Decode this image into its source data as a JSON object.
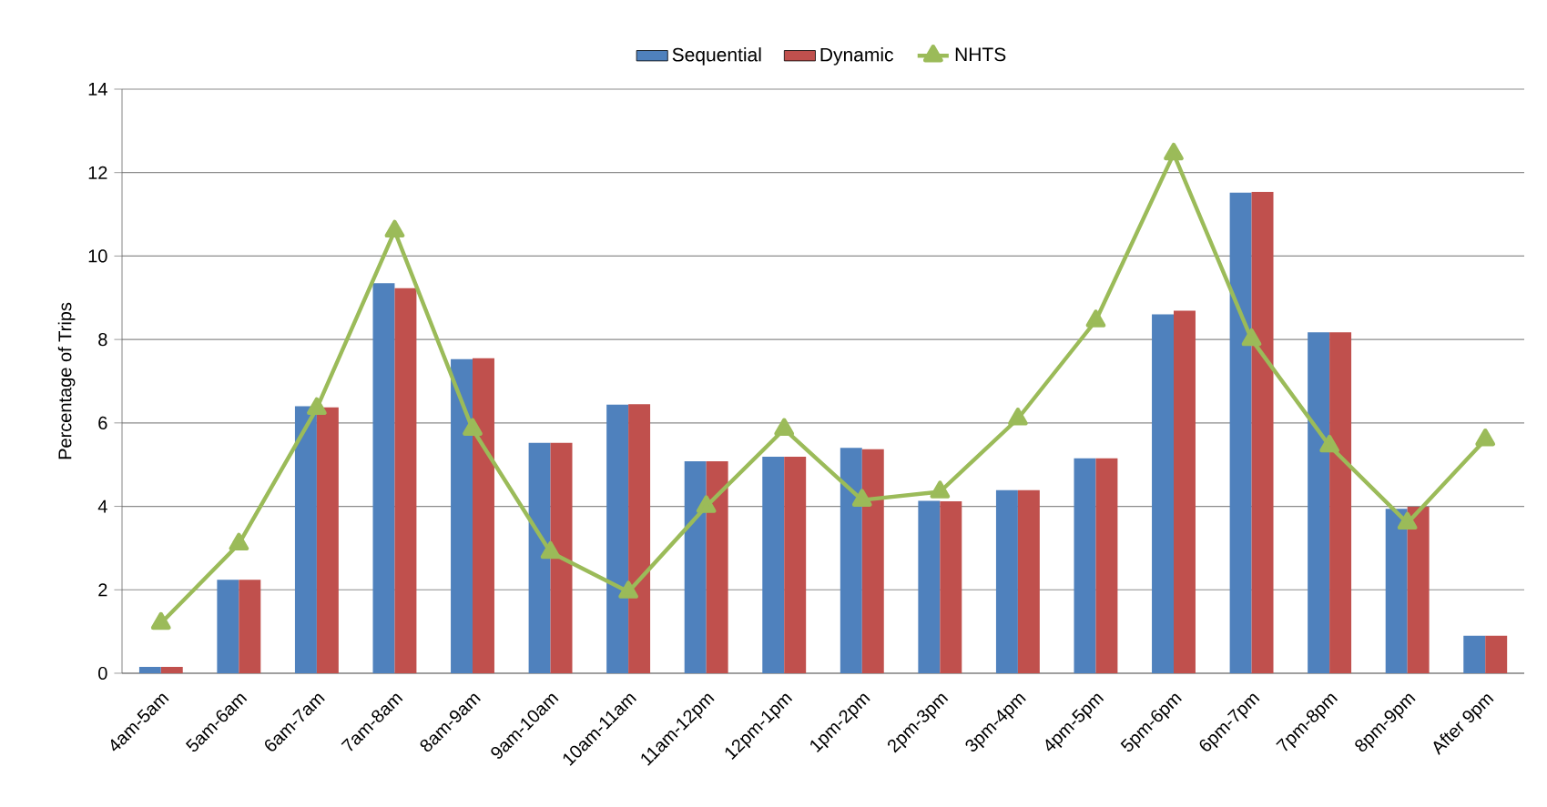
{
  "chart_data": {
    "type": "bar",
    "ylabel": "Percentage of Trips",
    "categories": [
      "4am-5am",
      "5am-6am",
      "6am-7am",
      "7am-8am",
      "8am-9am",
      "9am-10am",
      "10am-11am",
      "11am-12pm",
      "12pm-1pm",
      "1pm-2pm",
      "2pm-3pm",
      "3pm-4pm",
      "4pm-5pm",
      "5pm-6pm",
      "6pm-7pm",
      "7pm-8pm",
      "8pm-9pm",
      "After 9pm"
    ],
    "series": [
      {
        "name": "Sequential",
        "color": "#4f81bd",
        "values": [
          0.15,
          2.24,
          6.4,
          9.35,
          7.53,
          5.52,
          6.44,
          5.08,
          5.19,
          5.4,
          4.13,
          4.39,
          5.15,
          8.6,
          11.52,
          8.17,
          3.94,
          0.9
        ]
      },
      {
        "name": "Dynamic",
        "color": "#c0504d",
        "values": [
          0.15,
          2.24,
          6.37,
          9.23,
          7.55,
          5.52,
          6.45,
          5.08,
          5.19,
          5.37,
          4.12,
          4.39,
          5.15,
          8.69,
          11.54,
          8.17,
          3.99,
          0.9
        ]
      },
      {
        "name": "NHTS",
        "type": "line",
        "color": "#9bbb59",
        "marker": "triangle",
        "values": [
          1.2,
          3.1,
          6.35,
          10.6,
          5.85,
          2.9,
          1.95,
          4.0,
          5.85,
          4.15,
          4.35,
          6.1,
          8.45,
          12.45,
          8.0,
          5.45,
          3.6,
          5.6
        ]
      }
    ],
    "ylim": [
      0,
      14
    ],
    "yticks": [
      0,
      2,
      4,
      6,
      8,
      10,
      12,
      14
    ],
    "grid": "y",
    "legend": "top"
  }
}
